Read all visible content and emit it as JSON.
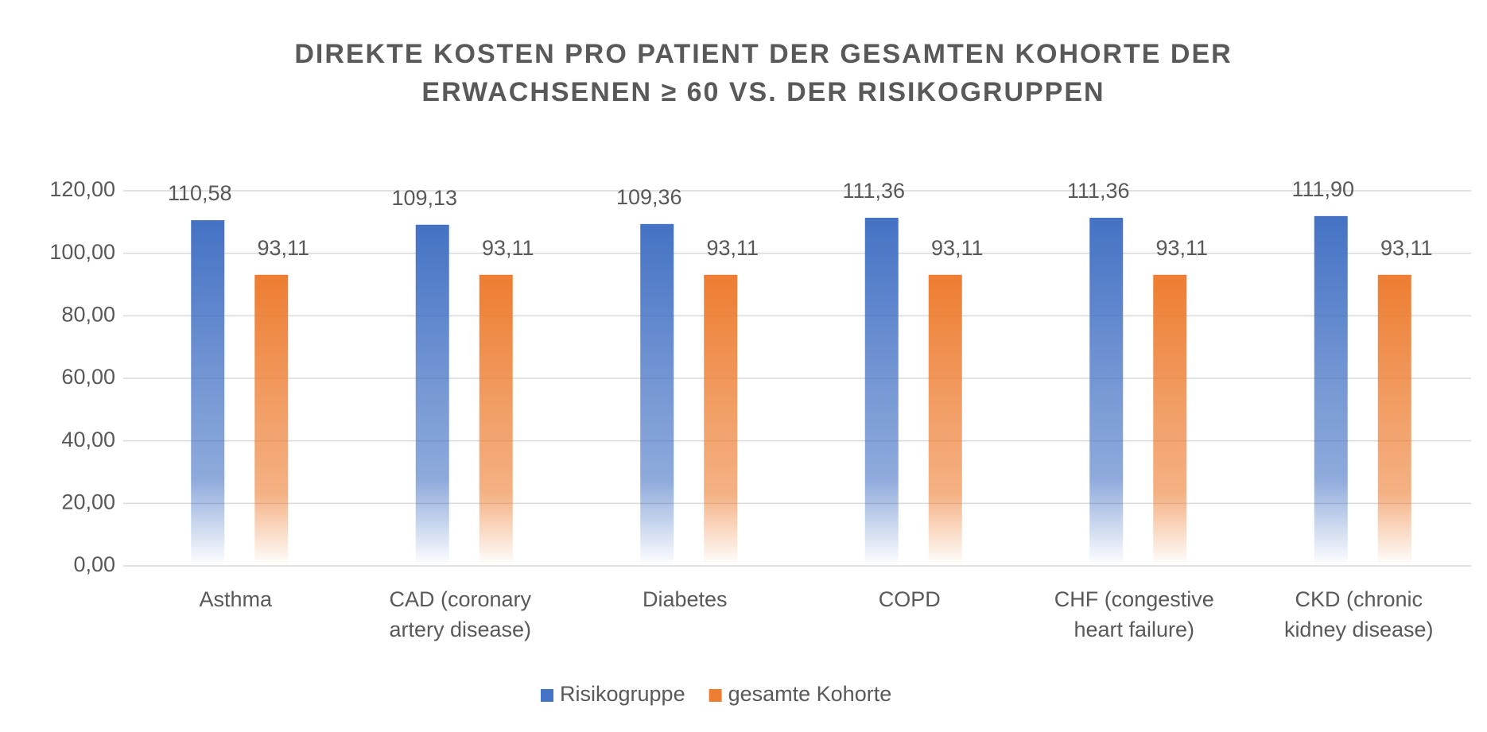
{
  "chart_data": {
    "type": "bar",
    "title": [
      "DIREKTE KOSTEN PRO PATIENT DER GESAMTEN KOHORTE DER",
      "ERWACHSENEN ≥ 60 VS. DER RISIKOGRUPPEN"
    ],
    "categories": [
      "Asthma",
      "CAD (coronary artery disease)",
      "Diabetes",
      "COPD",
      "CHF (congestive heart failure)",
      "CKD (chronic kidney disease)"
    ],
    "series": [
      {
        "name": "Risikogruppe",
        "color": "#4472c4",
        "values": [
          110.58,
          109.13,
          109.36,
          111.36,
          111.36,
          111.9
        ],
        "value_labels": [
          "110,58",
          "109,13",
          "109,36",
          "111,36",
          "111,36",
          "111,90"
        ]
      },
      {
        "name": "gesamte Kohorte",
        "color": "#ed7d31",
        "values": [
          93.11,
          93.11,
          93.11,
          93.11,
          93.11,
          93.11
        ],
        "value_labels": [
          "93,11",
          "93,11",
          "93,11",
          "93,11",
          "93,11",
          "93,11"
        ]
      }
    ],
    "ylim": [
      0,
      120
    ],
    "yticks": [
      {
        "value": 0,
        "label": "0,00"
      },
      {
        "value": 20,
        "label": "20,00"
      },
      {
        "value": 40,
        "label": "40,00"
      },
      {
        "value": 60,
        "label": "60,00"
      },
      {
        "value": 80,
        "label": "80,00"
      },
      {
        "value": 100,
        "label": "100,00"
      },
      {
        "value": 120,
        "label": "120,00"
      }
    ],
    "grid": true,
    "legend": "bottom"
  }
}
